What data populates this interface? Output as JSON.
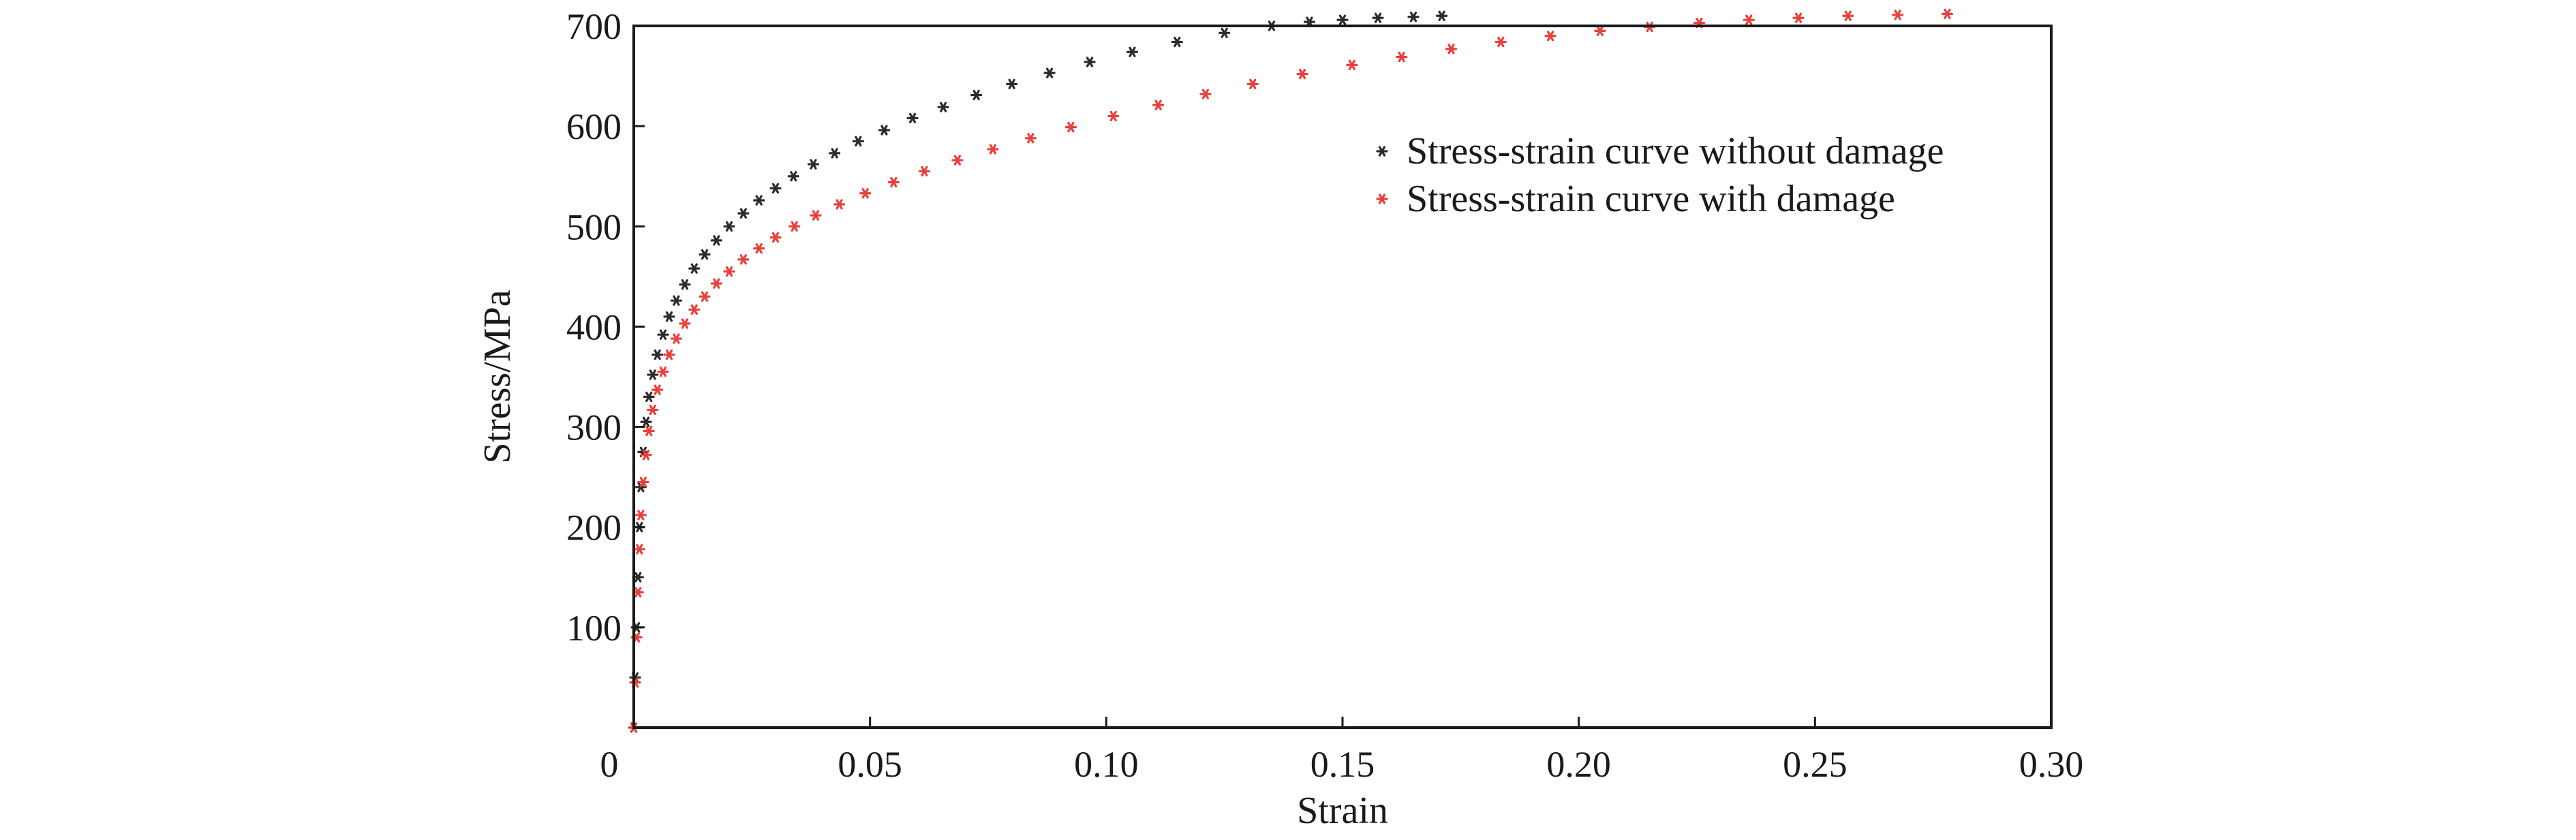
{
  "chart_data": {
    "type": "scatter",
    "title": "",
    "xlabel": "Strain",
    "ylabel": "Stress/MPa",
    "xlim": [
      0,
      0.3
    ],
    "ylim": [
      0,
      700
    ],
    "x_ticks": [
      0,
      0.05,
      0.1,
      0.15,
      0.2,
      0.25,
      0.3
    ],
    "x_tick_labels": [
      "0",
      "0.05",
      "0.10",
      "0.15",
      "0.20",
      "0.25",
      "0.30"
    ],
    "y_ticks": [
      100,
      200,
      300,
      400,
      500,
      600,
      700
    ],
    "y_tick_labels": [
      "100",
      "200",
      "300",
      "400",
      "500",
      "600",
      "700"
    ],
    "grid": false,
    "legend_position": "top-right",
    "series": [
      {
        "name": "Stress-strain curve without damage",
        "color": "#2b2b2b",
        "marker": "asterisk",
        "points": [
          [
            0.0,
            0
          ],
          [
            0.0003,
            50
          ],
          [
            0.0006,
            100
          ],
          [
            0.0009,
            150
          ],
          [
            0.0012,
            200
          ],
          [
            0.0015,
            240
          ],
          [
            0.002,
            275
          ],
          [
            0.0026,
            305
          ],
          [
            0.0032,
            330
          ],
          [
            0.004,
            352
          ],
          [
            0.005,
            372
          ],
          [
            0.0062,
            392
          ],
          [
            0.0075,
            410
          ],
          [
            0.009,
            426
          ],
          [
            0.0108,
            442
          ],
          [
            0.0128,
            458
          ],
          [
            0.015,
            472
          ],
          [
            0.0175,
            486
          ],
          [
            0.0202,
            500
          ],
          [
            0.0232,
            513
          ],
          [
            0.0265,
            526
          ],
          [
            0.03,
            538
          ],
          [
            0.0338,
            550
          ],
          [
            0.038,
            562
          ],
          [
            0.0425,
            573
          ],
          [
            0.0475,
            585
          ],
          [
            0.053,
            596
          ],
          [
            0.059,
            608
          ],
          [
            0.0655,
            619
          ],
          [
            0.0725,
            631
          ],
          [
            0.08,
            642
          ],
          [
            0.088,
            653
          ],
          [
            0.0965,
            664
          ],
          [
            0.1055,
            674
          ],
          [
            0.115,
            684
          ],
          [
            0.125,
            693
          ],
          [
            0.135,
            700
          ],
          [
            0.143,
            704
          ],
          [
            0.15,
            706
          ],
          [
            0.1575,
            708
          ],
          [
            0.165,
            709
          ],
          [
            0.171,
            710
          ]
        ]
      },
      {
        "name": "Stress-strain curve with damage",
        "color": "#e8403a",
        "marker": "asterisk",
        "points": [
          [
            0.0,
            0
          ],
          [
            0.0003,
            45
          ],
          [
            0.0006,
            90
          ],
          [
            0.0009,
            135
          ],
          [
            0.0012,
            178
          ],
          [
            0.0015,
            212
          ],
          [
            0.002,
            245
          ],
          [
            0.0026,
            272
          ],
          [
            0.0032,
            296
          ],
          [
            0.004,
            317
          ],
          [
            0.005,
            337
          ],
          [
            0.0062,
            355
          ],
          [
            0.0075,
            372
          ],
          [
            0.009,
            388
          ],
          [
            0.0108,
            403
          ],
          [
            0.0128,
            417
          ],
          [
            0.015,
            430
          ],
          [
            0.0175,
            443
          ],
          [
            0.0202,
            455
          ],
          [
            0.0232,
            467
          ],
          [
            0.0265,
            478
          ],
          [
            0.03,
            489
          ],
          [
            0.034,
            500
          ],
          [
            0.0385,
            511
          ],
          [
            0.0435,
            522
          ],
          [
            0.049,
            533
          ],
          [
            0.055,
            544
          ],
          [
            0.0615,
            555
          ],
          [
            0.0685,
            566
          ],
          [
            0.076,
            577
          ],
          [
            0.084,
            588
          ],
          [
            0.0925,
            599
          ],
          [
            0.1015,
            610
          ],
          [
            0.111,
            621
          ],
          [
            0.121,
            632
          ],
          [
            0.131,
            642
          ],
          [
            0.1415,
            652
          ],
          [
            0.152,
            661
          ],
          [
            0.1625,
            669
          ],
          [
            0.173,
            677
          ],
          [
            0.1835,
            684
          ],
          [
            0.194,
            690
          ],
          [
            0.2045,
            695
          ],
          [
            0.215,
            699
          ],
          [
            0.2255,
            703
          ],
          [
            0.236,
            706
          ],
          [
            0.2465,
            708
          ],
          [
            0.257,
            710
          ],
          [
            0.2675,
            711
          ],
          [
            0.278,
            712
          ]
        ]
      }
    ]
  }
}
